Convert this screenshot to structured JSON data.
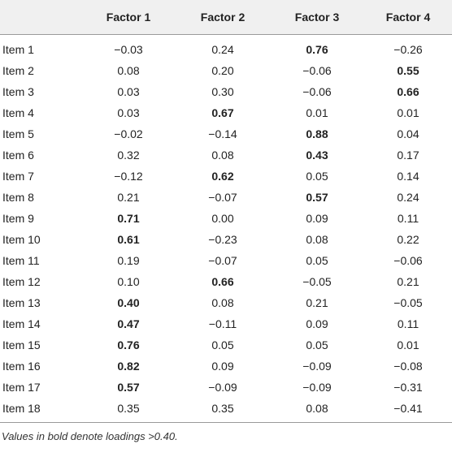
{
  "table": {
    "headers": [
      "",
      "Factor 1",
      "Factor 2",
      "Factor 3",
      "Factor 4"
    ],
    "rows": [
      {
        "item": "Item 1",
        "values": [
          "−0.03",
          "0.24",
          "0.76",
          "−0.26"
        ],
        "bold": [
          false,
          false,
          true,
          false
        ]
      },
      {
        "item": "Item 2",
        "values": [
          "0.08",
          "0.20",
          "−0.06",
          "0.55"
        ],
        "bold": [
          false,
          false,
          false,
          true
        ]
      },
      {
        "item": "Item 3",
        "values": [
          "0.03",
          "0.30",
          "−0.06",
          "0.66"
        ],
        "bold": [
          false,
          false,
          false,
          true
        ]
      },
      {
        "item": "Item 4",
        "values": [
          "0.03",
          "0.67",
          "0.01",
          "0.01"
        ],
        "bold": [
          false,
          true,
          false,
          false
        ]
      },
      {
        "item": "Item 5",
        "values": [
          "−0.02",
          "−0.14",
          "0.88",
          "0.04"
        ],
        "bold": [
          false,
          false,
          true,
          false
        ]
      },
      {
        "item": "Item 6",
        "values": [
          "0.32",
          "0.08",
          "0.43",
          "0.17"
        ],
        "bold": [
          false,
          false,
          true,
          false
        ]
      },
      {
        "item": "Item 7",
        "values": [
          "−0.12",
          "0.62",
          "0.05",
          "0.14"
        ],
        "bold": [
          false,
          true,
          false,
          false
        ]
      },
      {
        "item": "Item 8",
        "values": [
          "0.21",
          "−0.07",
          "0.57",
          "0.24"
        ],
        "bold": [
          false,
          false,
          true,
          false
        ]
      },
      {
        "item": "Item 9",
        "values": [
          "0.71",
          "0.00",
          "0.09",
          "0.11"
        ],
        "bold": [
          true,
          false,
          false,
          false
        ]
      },
      {
        "item": "Item 10",
        "values": [
          "0.61",
          "−0.23",
          "0.08",
          "0.22"
        ],
        "bold": [
          true,
          false,
          false,
          false
        ]
      },
      {
        "item": "Item 11",
        "values": [
          "0.19",
          "−0.07",
          "0.05",
          "−0.06"
        ],
        "bold": [
          false,
          false,
          false,
          false
        ]
      },
      {
        "item": "Item 12",
        "values": [
          "0.10",
          "0.66",
          "−0.05",
          "0.21"
        ],
        "bold": [
          false,
          true,
          false,
          false
        ]
      },
      {
        "item": "Item 13",
        "values": [
          "0.40",
          "0.08",
          "0.21",
          "−0.05"
        ],
        "bold": [
          true,
          false,
          false,
          false
        ]
      },
      {
        "item": "Item 14",
        "values": [
          "0.47",
          "−0.11",
          "0.09",
          "0.11"
        ],
        "bold": [
          true,
          false,
          false,
          false
        ]
      },
      {
        "item": "Item 15",
        "values": [
          "0.76",
          "0.05",
          "0.05",
          "0.01"
        ],
        "bold": [
          true,
          false,
          false,
          false
        ]
      },
      {
        "item": "Item 16",
        "values": [
          "0.82",
          "0.09",
          "−0.09",
          "−0.08"
        ],
        "bold": [
          true,
          false,
          false,
          false
        ]
      },
      {
        "item": "Item 17",
        "values": [
          "0.57",
          "−0.09",
          "−0.09",
          "−0.31"
        ],
        "bold": [
          true,
          false,
          false,
          false
        ]
      },
      {
        "item": "Item 18",
        "values": [
          "0.35",
          "0.35",
          "0.08",
          "−0.41"
        ],
        "bold": [
          false,
          false,
          false,
          false
        ]
      }
    ]
  },
  "footnote": "Values in bold denote loadings >0.40.",
  "colors": {
    "header_bg": "#f0f0f0",
    "rule": "#9a9a9a",
    "text": "#222222"
  }
}
